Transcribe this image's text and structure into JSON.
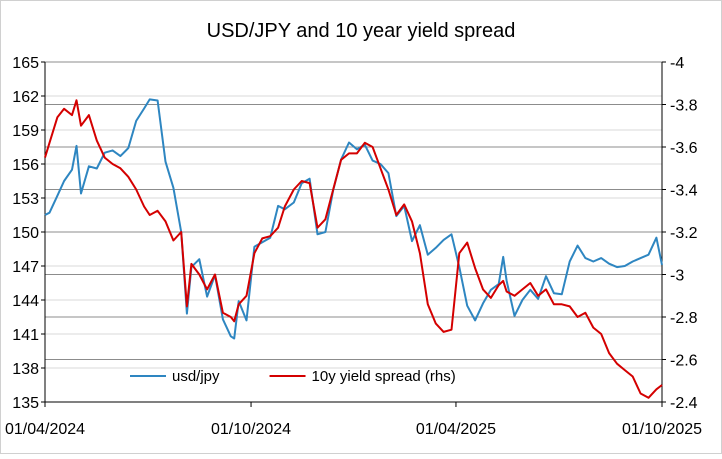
{
  "chart_data": {
    "type": "line",
    "title": "USD/JPY and 10 year yield spread",
    "xlabel": "",
    "ylabel": "",
    "y2label": "",
    "x_range": [
      "2024-04-01",
      "2025-10-01"
    ],
    "x_ticks": [
      "2024-04-01",
      "2024-10-01",
      "2025-04-01",
      "2025-10-01"
    ],
    "x_tick_labels": [
      "01/04/2024",
      "01/10/2024",
      "01/04/2025",
      "01/10/2025"
    ],
    "ylim": [
      135,
      165
    ],
    "y_ticks": [
      135,
      138,
      141,
      144,
      147,
      150,
      153,
      156,
      159,
      162,
      165
    ],
    "y_tick_labels": [
      "135",
      "138",
      "141",
      "144",
      "147",
      "150",
      "153",
      "156",
      "159",
      "162",
      "165"
    ],
    "y2lim": [
      -2.4,
      -4.0
    ],
    "y2_ticks": [
      -4,
      -3.8,
      -3.6,
      -3.4,
      -3.2,
      -3,
      -2.8,
      -2.6,
      -2.4
    ],
    "y2_tick_labels": [
      "-4",
      "-3.8",
      "-3.6",
      "-3.4",
      "-3.2",
      "-3",
      "-2.8",
      "-2.6",
      "-2.4"
    ],
    "y2_inverted": true,
    "grid": "horizontal",
    "legend_position": "bottom-left",
    "series": [
      {
        "name": "usd/jpy",
        "axis": "left",
        "color": "#2E86C1",
        "points": [
          [
            "2024-04-01",
            151.5
          ],
          [
            "2024-04-05",
            151.7
          ],
          [
            "2024-04-12",
            153.2
          ],
          [
            "2024-04-18",
            154.5
          ],
          [
            "2024-04-25",
            155.5
          ],
          [
            "2024-04-29",
            157.6
          ],
          [
            "2024-05-03",
            153.4
          ],
          [
            "2024-05-10",
            155.8
          ],
          [
            "2024-05-17",
            155.6
          ],
          [
            "2024-05-24",
            157.0
          ],
          [
            "2024-05-31",
            157.2
          ],
          [
            "2024-06-07",
            156.7
          ],
          [
            "2024-06-14",
            157.4
          ],
          [
            "2024-06-21",
            159.8
          ],
          [
            "2024-06-28",
            160.9
          ],
          [
            "2024-07-03",
            161.7
          ],
          [
            "2024-07-10",
            161.6
          ],
          [
            "2024-07-17",
            156.2
          ],
          [
            "2024-07-24",
            153.9
          ],
          [
            "2024-07-31",
            150.0
          ],
          [
            "2024-08-05",
            142.8
          ],
          [
            "2024-08-09",
            146.9
          ],
          [
            "2024-08-16",
            147.6
          ],
          [
            "2024-08-23",
            144.3
          ],
          [
            "2024-08-30",
            146.2
          ],
          [
            "2024-09-06",
            142.3
          ],
          [
            "2024-09-13",
            140.8
          ],
          [
            "2024-09-16",
            140.6
          ],
          [
            "2024-09-20",
            143.9
          ],
          [
            "2024-09-27",
            142.2
          ],
          [
            "2024-10-04",
            148.7
          ],
          [
            "2024-10-11",
            149.1
          ],
          [
            "2024-10-18",
            149.5
          ],
          [
            "2024-10-25",
            152.3
          ],
          [
            "2024-10-31",
            152.0
          ],
          [
            "2024-11-08",
            152.6
          ],
          [
            "2024-11-15",
            154.3
          ],
          [
            "2024-11-22",
            154.7
          ],
          [
            "2024-11-29",
            149.8
          ],
          [
            "2024-12-06",
            150.0
          ],
          [
            "2024-12-13",
            153.7
          ],
          [
            "2024-12-20",
            156.4
          ],
          [
            "2024-12-27",
            157.9
          ],
          [
            "2025-01-03",
            157.3
          ],
          [
            "2025-01-10",
            157.7
          ],
          [
            "2025-01-17",
            156.3
          ],
          [
            "2025-01-24",
            156.0
          ],
          [
            "2025-01-31",
            155.2
          ],
          [
            "2025-02-07",
            151.4
          ],
          [
            "2025-02-14",
            152.3
          ],
          [
            "2025-02-21",
            149.2
          ],
          [
            "2025-02-28",
            150.6
          ],
          [
            "2025-03-07",
            148.0
          ],
          [
            "2025-03-14",
            148.6
          ],
          [
            "2025-03-21",
            149.3
          ],
          [
            "2025-03-28",
            149.8
          ],
          [
            "2025-04-04",
            146.9
          ],
          [
            "2025-04-11",
            143.5
          ],
          [
            "2025-04-18",
            142.2
          ],
          [
            "2025-04-25",
            143.7
          ],
          [
            "2025-05-02",
            144.9
          ],
          [
            "2025-05-09",
            145.4
          ],
          [
            "2025-05-13",
            147.8
          ],
          [
            "2025-05-16",
            145.7
          ],
          [
            "2025-05-23",
            142.6
          ],
          [
            "2025-05-30",
            144.0
          ],
          [
            "2025-06-06",
            144.9
          ],
          [
            "2025-06-13",
            144.1
          ],
          [
            "2025-06-20",
            146.1
          ],
          [
            "2025-06-27",
            144.6
          ],
          [
            "2025-07-04",
            144.5
          ],
          [
            "2025-07-11",
            147.4
          ],
          [
            "2025-07-18",
            148.8
          ],
          [
            "2025-07-25",
            147.7
          ],
          [
            "2025-08-01",
            147.4
          ],
          [
            "2025-08-08",
            147.7
          ],
          [
            "2025-08-15",
            147.2
          ],
          [
            "2025-08-22",
            146.9
          ],
          [
            "2025-08-29",
            147.0
          ],
          [
            "2025-09-05",
            147.4
          ],
          [
            "2025-09-12",
            147.7
          ],
          [
            "2025-09-19",
            148.0
          ],
          [
            "2025-09-26",
            149.5
          ],
          [
            "2025-10-01",
            147.1
          ]
        ]
      },
      {
        "name": "10y yield spread (rhs)",
        "axis": "right",
        "color": "#D40000",
        "points": [
          [
            "2024-04-01",
            -3.55
          ],
          [
            "2024-04-05",
            -3.62
          ],
          [
            "2024-04-12",
            -3.74
          ],
          [
            "2024-04-18",
            -3.78
          ],
          [
            "2024-04-25",
            -3.75
          ],
          [
            "2024-04-29",
            -3.82
          ],
          [
            "2024-05-03",
            -3.7
          ],
          [
            "2024-05-10",
            -3.75
          ],
          [
            "2024-05-17",
            -3.63
          ],
          [
            "2024-05-24",
            -3.55
          ],
          [
            "2024-05-31",
            -3.52
          ],
          [
            "2024-06-07",
            -3.5
          ],
          [
            "2024-06-14",
            -3.46
          ],
          [
            "2024-06-21",
            -3.4
          ],
          [
            "2024-06-28",
            -3.32
          ],
          [
            "2024-07-03",
            -3.28
          ],
          [
            "2024-07-10",
            -3.3
          ],
          [
            "2024-07-17",
            -3.25
          ],
          [
            "2024-07-24",
            -3.16
          ],
          [
            "2024-07-31",
            -3.2
          ],
          [
            "2024-08-05",
            -2.85
          ],
          [
            "2024-08-09",
            -3.05
          ],
          [
            "2024-08-16",
            -3.0
          ],
          [
            "2024-08-23",
            -2.93
          ],
          [
            "2024-08-30",
            -3.0
          ],
          [
            "2024-09-06",
            -2.82
          ],
          [
            "2024-09-13",
            -2.8
          ],
          [
            "2024-09-16",
            -2.78
          ],
          [
            "2024-09-20",
            -2.86
          ],
          [
            "2024-09-27",
            -2.9
          ],
          [
            "2024-10-04",
            -3.1
          ],
          [
            "2024-10-11",
            -3.17
          ],
          [
            "2024-10-18",
            -3.18
          ],
          [
            "2024-10-25",
            -3.22
          ],
          [
            "2024-10-31",
            -3.32
          ],
          [
            "2024-11-08",
            -3.4
          ],
          [
            "2024-11-15",
            -3.44
          ],
          [
            "2024-11-22",
            -3.43
          ],
          [
            "2024-11-29",
            -3.22
          ],
          [
            "2024-12-06",
            -3.26
          ],
          [
            "2024-12-13",
            -3.4
          ],
          [
            "2024-12-20",
            -3.54
          ],
          [
            "2024-12-27",
            -3.57
          ],
          [
            "2025-01-03",
            -3.57
          ],
          [
            "2025-01-10",
            -3.62
          ],
          [
            "2025-01-17",
            -3.6
          ],
          [
            "2025-01-24",
            -3.5
          ],
          [
            "2025-01-31",
            -3.4
          ],
          [
            "2025-02-07",
            -3.28
          ],
          [
            "2025-02-14",
            -3.33
          ],
          [
            "2025-02-21",
            -3.25
          ],
          [
            "2025-02-28",
            -3.1
          ],
          [
            "2025-03-07",
            -2.86
          ],
          [
            "2025-03-14",
            -2.77
          ],
          [
            "2025-03-21",
            -2.73
          ],
          [
            "2025-03-28",
            -2.74
          ],
          [
            "2025-04-04",
            -3.1
          ],
          [
            "2025-04-11",
            -3.15
          ],
          [
            "2025-04-18",
            -3.03
          ],
          [
            "2025-04-25",
            -2.93
          ],
          [
            "2025-05-02",
            -2.89
          ],
          [
            "2025-05-09",
            -2.95
          ],
          [
            "2025-05-13",
            -2.97
          ],
          [
            "2025-05-16",
            -2.92
          ],
          [
            "2025-05-23",
            -2.9
          ],
          [
            "2025-05-30",
            -2.93
          ],
          [
            "2025-06-06",
            -2.96
          ],
          [
            "2025-06-13",
            -2.9
          ],
          [
            "2025-06-20",
            -2.93
          ],
          [
            "2025-06-27",
            -2.86
          ],
          [
            "2025-07-04",
            -2.86
          ],
          [
            "2025-07-11",
            -2.85
          ],
          [
            "2025-07-18",
            -2.8
          ],
          [
            "2025-07-25",
            -2.82
          ],
          [
            "2025-08-01",
            -2.75
          ],
          [
            "2025-08-08",
            -2.72
          ],
          [
            "2025-08-15",
            -2.63
          ],
          [
            "2025-08-22",
            -2.58
          ],
          [
            "2025-08-29",
            -2.55
          ],
          [
            "2025-09-05",
            -2.52
          ],
          [
            "2025-09-12",
            -2.44
          ],
          [
            "2025-09-19",
            -2.42
          ],
          [
            "2025-09-26",
            -2.46
          ],
          [
            "2025-10-01",
            -2.48
          ]
        ]
      }
    ]
  }
}
